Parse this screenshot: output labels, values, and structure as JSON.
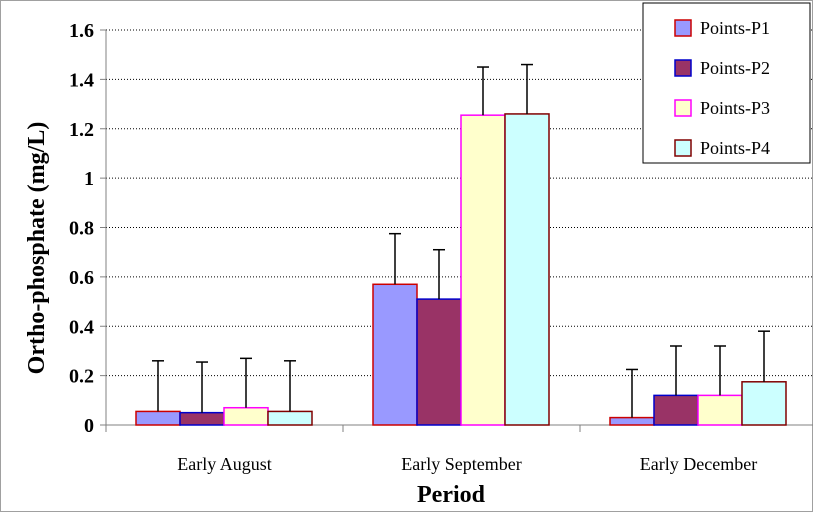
{
  "chart_data": {
    "type": "bar",
    "categories": [
      "Early August",
      "Early September",
      "Early December"
    ],
    "xlabel": "Period",
    "ylabel": "Ortho-phosphate (mg/L)",
    "ylim": [
      0,
      1.6
    ],
    "yticks": [
      0,
      0.2,
      0.4,
      0.6,
      0.8,
      1,
      1.2,
      1.4,
      1.6
    ],
    "ytick_labels": [
      "0",
      "0.2",
      "0.4",
      "0.6",
      "0.8",
      "1",
      "1.2",
      "1.4",
      "1.6"
    ],
    "grid": "horizontal",
    "legend_position": "top-right",
    "error_bars": "upper",
    "series": [
      {
        "name": "Points-P1",
        "fill": "#9999ff",
        "stroke": "#cc0000",
        "values": [
          0.055,
          0.57,
          0.03
        ],
        "error_upper": [
          0.26,
          0.775,
          0.225
        ]
      },
      {
        "name": "Points-P2",
        "fill": "#993366",
        "stroke": "#0000cc",
        "values": [
          0.05,
          0.51,
          0.12
        ],
        "error_upper": [
          0.255,
          0.71,
          0.32
        ]
      },
      {
        "name": "Points-P3",
        "fill": "#ffffcc",
        "stroke": "#ff00ff",
        "values": [
          0.07,
          1.255,
          0.12
        ],
        "error_upper": [
          0.27,
          1.45,
          0.32
        ]
      },
      {
        "name": "Points-P4",
        "fill": "#ccffff",
        "stroke": "#800000",
        "values": [
          0.055,
          1.26,
          0.175
        ],
        "error_upper": [
          0.26,
          1.46,
          0.38
        ]
      }
    ]
  }
}
